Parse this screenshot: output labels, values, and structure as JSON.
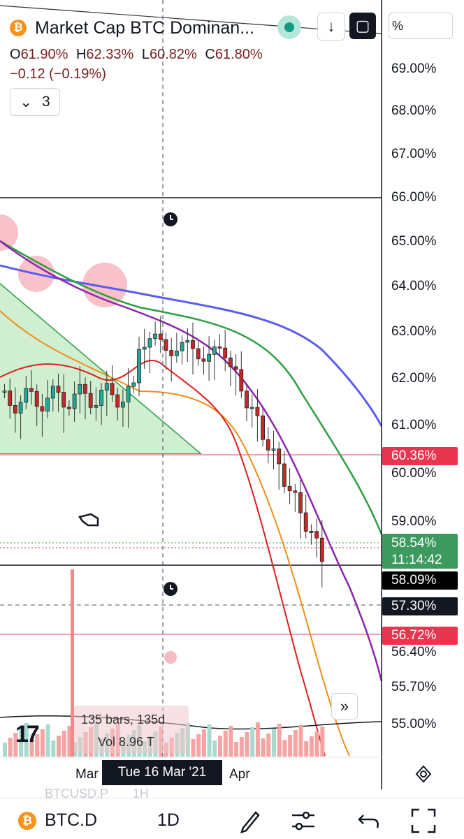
{
  "header": {
    "symbol_icon": "bitcoin-icon",
    "title": "Market Cap BTC Dominan...",
    "ohlc": {
      "o_label": "O",
      "o": "61.90%",
      "h_label": "H",
      "h": "62.33%",
      "l_label": "L",
      "l": "60.82%",
      "c_label": "C",
      "c": "61.80%"
    },
    "change": "−0.12 (−0.19%)",
    "indicators_count": "3",
    "unit": "%",
    "buttons": [
      "market-status-icon",
      "download-arrow-icon",
      "fullscreen-icon"
    ]
  },
  "price_axis": {
    "ticks": [
      "69.00%",
      "68.00%",
      "67.00%",
      "66.00%",
      "65.00%",
      "64.00%",
      "63.00%",
      "62.00%",
      "61.00%",
      "60.00%",
      "59.00%",
      "56.40%",
      "55.70%",
      "55.00%"
    ],
    "labels": [
      {
        "text": "60.36%",
        "bg": "#e8364f"
      },
      {
        "text": "58.54%",
        "sub": "11:14:42",
        "bg": "#3c9a5f"
      },
      {
        "text": "58.09%",
        "bg": "#000000"
      },
      {
        "text": "57.30%",
        "bg": "#131722"
      },
      {
        "text": "56.72%",
        "bg": "#e8364f"
      }
    ]
  },
  "time_axis": {
    "labels": [
      "Mar",
      "Apr"
    ],
    "crosshair": "Tue 16 Mar '21"
  },
  "volume": {
    "bars_text": "135 bars, 135d",
    "vol_text": "Vol 8.96 T"
  },
  "logo": "17",
  "faded_text": {
    "symbol": "BTCUSD.P",
    "interval": "1H"
  },
  "bottom_bar": {
    "symbol": "BTC.D",
    "interval": "1D",
    "icons": [
      "pen-icon",
      "sliders-icon",
      "undo-icon",
      "fullscreen-corners-icon"
    ]
  },
  "colors": {
    "up": "#26a69a",
    "down": "#c62828",
    "ma_blue": "#5b5bf0",
    "ma_green": "#2e9e40",
    "ma_purple": "#8e24aa",
    "ma_orange": "#ef8f1a",
    "ma_red": "#e01d1d",
    "triangle_fill": "#c8ecc8"
  }
}
